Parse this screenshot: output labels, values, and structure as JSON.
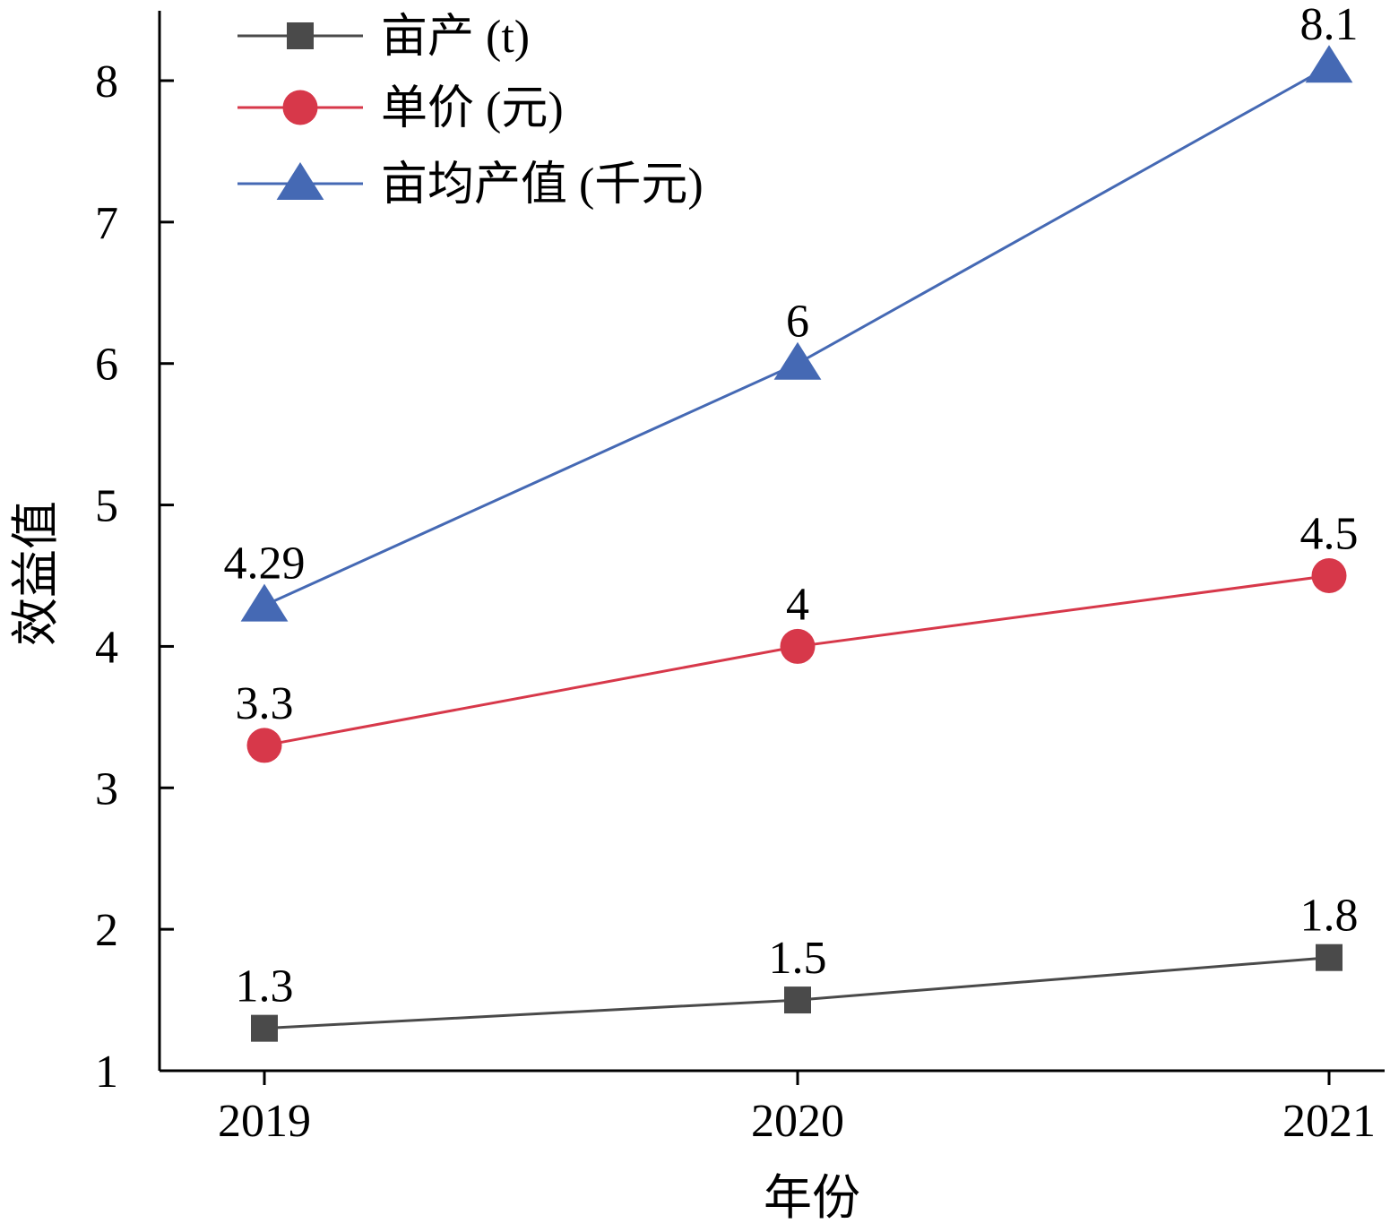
{
  "chart_data": {
    "type": "line",
    "xlabel": "年份",
    "ylabel": "效益值",
    "categories": [
      "2019",
      "2020",
      "2021"
    ],
    "ylim": [
      1,
      8.5
    ],
    "yticks": [
      1,
      2,
      3,
      4,
      5,
      6,
      7,
      8
    ],
    "grid": false,
    "legend_position": "top-left",
    "series": [
      {
        "name": "亩产 (t)",
        "marker": "square",
        "color": "#4a4a4a",
        "values": [
          1.3,
          1.5,
          1.8
        ],
        "labels": [
          "1.3",
          "1.5",
          "1.8"
        ]
      },
      {
        "name": "单价 (元)",
        "marker": "circle",
        "color": "#d7384a",
        "values": [
          3.3,
          4,
          4.5
        ],
        "labels": [
          "3.3",
          "4",
          "4.5"
        ]
      },
      {
        "name": "亩均产值 (千元)",
        "marker": "triangle",
        "color": "#4569b4",
        "values": [
          4.29,
          6,
          8.1
        ],
        "labels": [
          "4.29",
          "6",
          "8.1"
        ]
      }
    ]
  }
}
